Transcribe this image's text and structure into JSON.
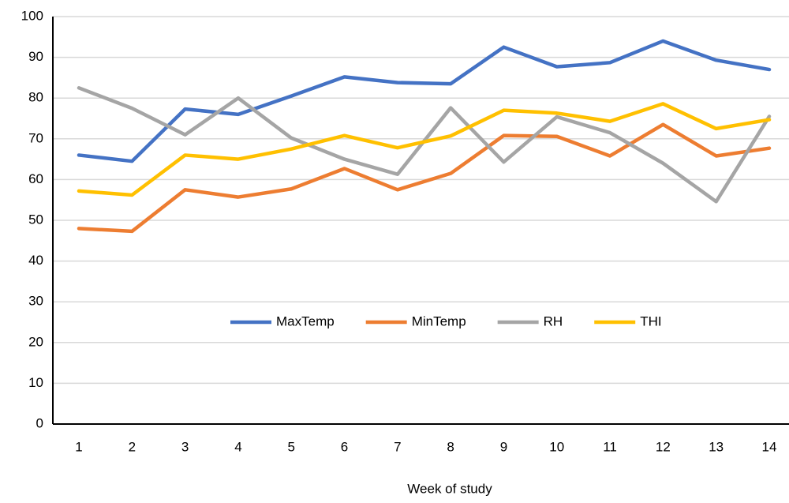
{
  "chart_data": {
    "type": "line",
    "x_label": "Week of study",
    "categories": [
      1,
      2,
      3,
      4,
      5,
      6,
      7,
      8,
      9,
      10,
      11,
      12,
      13,
      14
    ],
    "series": [
      {
        "name": "MaxTemp",
        "color": "#4472c4",
        "values": [
          66,
          64.5,
          77.3,
          76,
          80.5,
          85.2,
          83.8,
          83.5,
          92.5,
          87.7,
          88.7,
          94,
          89.3,
          87
        ]
      },
      {
        "name": "MinTemp",
        "color": "#ed7d31",
        "values": [
          48,
          47.3,
          57.5,
          55.7,
          57.7,
          62.7,
          57.5,
          61.5,
          70.8,
          70.6,
          65.8,
          73.5,
          65.8,
          67.7
        ]
      },
      {
        "name": "RH",
        "color": "#a5a5a5",
        "values": [
          82.5,
          77.5,
          71,
          80,
          70.2,
          65,
          61.3,
          77.6,
          64.3,
          75.4,
          71.5,
          64,
          54.6,
          75.5
        ]
      },
      {
        "name": "THI",
        "color": "#ffc000",
        "values": [
          57.2,
          56.2,
          66,
          65,
          67.5,
          70.8,
          67.8,
          70.7,
          77,
          76.3,
          74.3,
          78.6,
          72.5,
          74.7
        ]
      }
    ],
    "ylim": [
      0,
      100
    ],
    "yticks": [
      0,
      10,
      20,
      30,
      40,
      50,
      60,
      70,
      80,
      90,
      100
    ],
    "grid": true,
    "legend": "center"
  }
}
